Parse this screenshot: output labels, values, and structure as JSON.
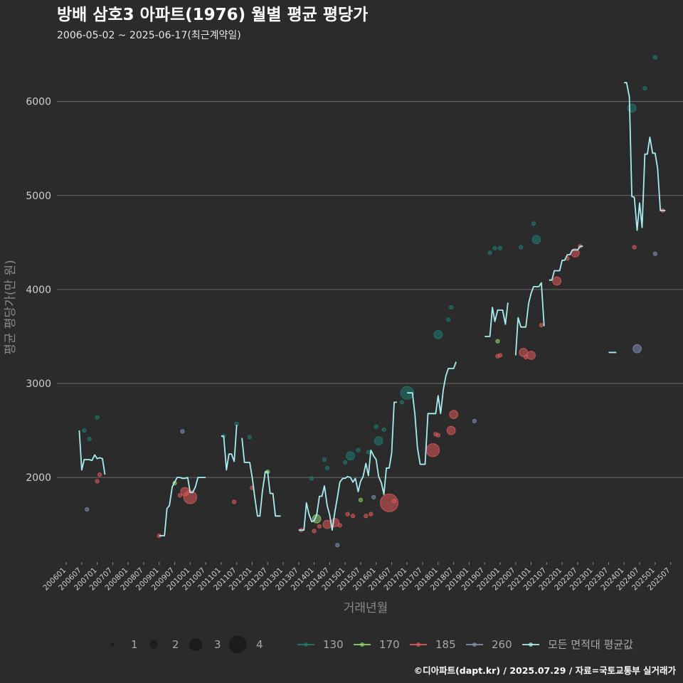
{
  "chart_data": {
    "type": "line",
    "title": "방배 삼호3 아파트(1976) 월별 평균 평당가",
    "subtitle": "2006-05-02 ~ 2025-06-17(최근계약일)",
    "xlabel": "거래년월",
    "ylabel": "평균 평당가(만 원)",
    "caption": "©디아파트(dapt.kr) / 2025.07.29 / 자료=국토교통부 실거래가",
    "ylim": [
      1100,
      6550
    ],
    "y_ticks": [
      2000,
      3000,
      4000,
      5000,
      6000
    ],
    "x_tick_labels": [
      "200601",
      "200607",
      "200701",
      "200707",
      "200801",
      "200807",
      "200901",
      "200907",
      "201001",
      "201007",
      "201101",
      "201107",
      "201201",
      "201207",
      "201301",
      "201307",
      "201401",
      "201407",
      "201501",
      "201507",
      "201601",
      "201607",
      "201701",
      "201707",
      "201801",
      "201807",
      "201901",
      "201907",
      "202001",
      "202007",
      "202101",
      "202107",
      "202201",
      "202207",
      "202301",
      "202307",
      "202401",
      "202407",
      "202501",
      "202507"
    ],
    "size_legend": [
      {
        "label": "1",
        "size": 1
      },
      {
        "label": "2",
        "size": 2
      },
      {
        "label": "3",
        "size": 3
      },
      {
        "label": "4",
        "size": 4
      }
    ],
    "color_legend": [
      {
        "label": "130",
        "color": "#1f7a72"
      },
      {
        "label": "170",
        "color": "#8fd46a"
      },
      {
        "label": "185",
        "color": "#e05a5a"
      },
      {
        "label": "260",
        "color": "#7f8fb5"
      },
      {
        "label": "모든 면적대 평균값",
        "color": "#a8eef0"
      }
    ],
    "average_line": [
      [
        [
          2006.42,
          2500
        ],
        [
          2006.5,
          2080
        ],
        [
          2006.58,
          2190
        ],
        [
          2006.67,
          2190
        ],
        [
          2006.75,
          2190
        ],
        [
          2006.83,
          2180
        ],
        [
          2006.92,
          2240
        ],
        [
          2007.0,
          2200
        ],
        [
          2007.08,
          2210
        ],
        [
          2007.17,
          2200
        ],
        [
          2007.25,
          2030
        ]
      ],
      [
        [
          2009.0,
          1380
        ],
        [
          2009.08,
          1380
        ],
        [
          2009.17,
          1380
        ],
        [
          2009.25,
          1670
        ],
        [
          2009.33,
          1700
        ],
        [
          2009.42,
          1900
        ],
        [
          2009.5,
          1950
        ],
        [
          2009.58,
          2000
        ],
        [
          2009.67,
          2000
        ],
        [
          2009.75,
          1990
        ],
        [
          2009.83,
          1990
        ],
        [
          2009.92,
          2000
        ],
        [
          2010.0,
          1840
        ],
        [
          2010.08,
          1840
        ],
        [
          2010.17,
          1900
        ],
        [
          2010.25,
          2000
        ],
        [
          2010.33,
          2000
        ],
        [
          2010.42,
          2000
        ],
        [
          2010.5,
          2000
        ]
      ],
      [
        [
          2011.0,
          2440
        ],
        [
          2011.08,
          2440
        ],
        [
          2011.17,
          2080
        ],
        [
          2011.25,
          2250
        ],
        [
          2011.33,
          2250
        ],
        [
          2011.42,
          2170
        ],
        [
          2011.5,
          2560
        ]
      ],
      [
        [
          2011.67,
          2420
        ],
        [
          2011.75,
          2160
        ],
        [
          2011.83,
          2160
        ],
        [
          2011.92,
          2160
        ],
        [
          2012.0,
          2000
        ],
        [
          2012.08,
          1800
        ],
        [
          2012.17,
          1590
        ],
        [
          2012.25,
          1590
        ],
        [
          2012.33,
          1850
        ],
        [
          2012.42,
          2060
        ],
        [
          2012.5,
          2060
        ],
        [
          2012.58,
          1830
        ],
        [
          2012.67,
          1830
        ],
        [
          2012.75,
          1590
        ],
        [
          2012.83,
          1590
        ],
        [
          2012.92,
          1590
        ]
      ],
      [
        [
          2013.5,
          1440
        ],
        [
          2013.58,
          1440
        ],
        [
          2013.67,
          1440
        ],
        [
          2013.75,
          1730
        ],
        [
          2013.83,
          1610
        ],
        [
          2013.92,
          1530
        ],
        [
          2014.0,
          1540
        ],
        [
          2014.08,
          1600
        ],
        [
          2014.17,
          1800
        ],
        [
          2014.25,
          1800
        ],
        [
          2014.33,
          1910
        ],
        [
          2014.42,
          1700
        ],
        [
          2014.5,
          1600
        ],
        [
          2014.58,
          1440
        ],
        [
          2014.67,
          1640
        ],
        [
          2014.75,
          1790
        ],
        [
          2014.83,
          1950
        ],
        [
          2014.92,
          1990
        ],
        [
          2015.0,
          1990
        ],
        [
          2015.08,
          2010
        ],
        [
          2015.17,
          2000
        ],
        [
          2015.25,
          1950
        ],
        [
          2015.33,
          1990
        ],
        [
          2015.42,
          1850
        ],
        [
          2015.5,
          1960
        ],
        [
          2015.58,
          2010
        ],
        [
          2015.67,
          2150
        ],
        [
          2015.75,
          2020
        ],
        [
          2015.83,
          2290
        ],
        [
          2015.92,
          2230
        ],
        [
          2016.0,
          2190
        ],
        [
          2016.08,
          2010
        ],
        [
          2016.17,
          1940
        ],
        [
          2016.25,
          1820
        ],
        [
          2016.33,
          2100
        ],
        [
          2016.42,
          2100
        ],
        [
          2016.5,
          2260
        ],
        [
          2016.58,
          2800
        ],
        [
          2016.67,
          2800
        ]
      ],
      [
        [
          2017.0,
          2900
        ],
        [
          2017.08,
          2900
        ],
        [
          2017.17,
          2900
        ],
        [
          2017.25,
          2670
        ],
        [
          2017.33,
          2320
        ],
        [
          2017.42,
          2140
        ],
        [
          2017.5,
          2140
        ],
        [
          2017.58,
          2140
        ],
        [
          2017.67,
          2680
        ],
        [
          2017.75,
          2680
        ],
        [
          2017.83,
          2680
        ],
        [
          2017.92,
          2680
        ],
        [
          2018.0,
          2870
        ],
        [
          2018.08,
          2680
        ],
        [
          2018.17,
          2940
        ],
        [
          2018.25,
          3080
        ],
        [
          2018.33,
          3160
        ],
        [
          2018.42,
          3160
        ],
        [
          2018.5,
          3160
        ],
        [
          2018.58,
          3230
        ]
      ],
      [
        [
          2019.5,
          3500
        ],
        [
          2019.58,
          3500
        ],
        [
          2019.67,
          3500
        ],
        [
          2019.75,
          3810
        ],
        [
          2019.83,
          3660
        ],
        [
          2019.92,
          3780
        ],
        [
          2020.0,
          3780
        ],
        [
          2020.08,
          3780
        ],
        [
          2020.17,
          3630
        ],
        [
          2020.25,
          3860
        ]
      ],
      [
        [
          2020.5,
          3300
        ],
        [
          2020.58,
          3700
        ],
        [
          2020.67,
          3600
        ],
        [
          2020.75,
          3600
        ],
        [
          2020.83,
          3600
        ],
        [
          2020.92,
          3850
        ],
        [
          2021.0,
          3960
        ],
        [
          2021.08,
          4030
        ],
        [
          2021.17,
          4030
        ],
        [
          2021.25,
          4030
        ],
        [
          2021.33,
          4070
        ],
        [
          2021.42,
          3610
        ]
      ],
      [
        [
          2021.58,
          4100
        ],
        [
          2021.67,
          4100
        ],
        [
          2021.75,
          4200
        ],
        [
          2021.83,
          4200
        ],
        [
          2021.92,
          4200
        ],
        [
          2022.0,
          4310
        ],
        [
          2022.08,
          4310
        ],
        [
          2022.17,
          4370
        ],
        [
          2022.25,
          4370
        ],
        [
          2022.33,
          4420
        ],
        [
          2022.42,
          4420
        ],
        [
          2022.5,
          4420
        ],
        [
          2022.58,
          4460
        ],
        [
          2022.67,
          4460
        ]
      ],
      [
        [
          2023.5,
          3330
        ],
        [
          2023.58,
          3330
        ],
        [
          2023.67,
          3330
        ],
        [
          2023.75,
          3330
        ]
      ],
      [
        [
          2024.0,
          6200
        ],
        [
          2024.08,
          6200
        ],
        [
          2024.17,
          6050
        ],
        [
          2024.25,
          4990
        ],
        [
          2024.33,
          4980
        ],
        [
          2024.42,
          4630
        ],
        [
          2024.5,
          4920
        ],
        [
          2024.58,
          4660
        ],
        [
          2024.67,
          5440
        ],
        [
          2024.75,
          5440
        ],
        [
          2024.83,
          5620
        ],
        [
          2024.92,
          5450
        ],
        [
          2025.0,
          5450
        ],
        [
          2025.08,
          5290
        ],
        [
          2025.17,
          4840
        ],
        [
          2025.25,
          4840
        ],
        [
          2025.33,
          4840
        ]
      ]
    ],
    "points": [
      {
        "x": 2006.58,
        "y": 2500,
        "area": "130",
        "n": 1
      },
      {
        "x": 2006.67,
        "y": 1660,
        "area": "260",
        "n": 1
      },
      {
        "x": 2006.75,
        "y": 2410,
        "area": "130",
        "n": 1
      },
      {
        "x": 2007.0,
        "y": 2640,
        "area": "130",
        "n": 1
      },
      {
        "x": 2007.0,
        "y": 1960,
        "area": "185",
        "n": 1
      },
      {
        "x": 2007.08,
        "y": 2030,
        "area": "185",
        "n": 1
      },
      {
        "x": 2009.0,
        "y": 1380,
        "area": "185",
        "n": 1
      },
      {
        "x": 2009.5,
        "y": 1940,
        "area": "170",
        "n": 1
      },
      {
        "x": 2009.67,
        "y": 1810,
        "area": "185",
        "n": 1
      },
      {
        "x": 2009.75,
        "y": 2490,
        "area": "260",
        "n": 1
      },
      {
        "x": 2009.83,
        "y": 1850,
        "area": "185",
        "n": 2
      },
      {
        "x": 2010.0,
        "y": 1790,
        "area": "185",
        "n": 3
      },
      {
        "x": 2011.08,
        "y": 2440,
        "area": "130",
        "n": 1
      },
      {
        "x": 2011.42,
        "y": 1740,
        "area": "185",
        "n": 1
      },
      {
        "x": 2011.5,
        "y": 2570,
        "area": "130",
        "n": 1
      },
      {
        "x": 2011.92,
        "y": 2430,
        "area": "130",
        "n": 1
      },
      {
        "x": 2012.0,
        "y": 1890,
        "area": "185",
        "n": 1
      },
      {
        "x": 2012.5,
        "y": 2060,
        "area": "170",
        "n": 1
      },
      {
        "x": 2013.58,
        "y": 1440,
        "area": "185",
        "n": 1
      },
      {
        "x": 2013.92,
        "y": 1990,
        "area": "130",
        "n": 1
      },
      {
        "x": 2014.0,
        "y": 1430,
        "area": "185",
        "n": 1
      },
      {
        "x": 2014.08,
        "y": 1560,
        "area": "170",
        "n": 2
      },
      {
        "x": 2014.17,
        "y": 1480,
        "area": "185",
        "n": 1
      },
      {
        "x": 2014.33,
        "y": 2190,
        "area": "130",
        "n": 1
      },
      {
        "x": 2014.42,
        "y": 2100,
        "area": "130",
        "n": 1
      },
      {
        "x": 2014.42,
        "y": 1500,
        "area": "185",
        "n": 2
      },
      {
        "x": 2014.67,
        "y": 1520,
        "area": "185",
        "n": 2
      },
      {
        "x": 2014.75,
        "y": 1280,
        "area": "260",
        "n": 1
      },
      {
        "x": 2014.83,
        "y": 1490,
        "area": "185",
        "n": 1
      },
      {
        "x": 2015.0,
        "y": 2160,
        "area": "130",
        "n": 1
      },
      {
        "x": 2015.08,
        "y": 1610,
        "area": "185",
        "n": 1
      },
      {
        "x": 2015.17,
        "y": 2230,
        "area": "130",
        "n": 2
      },
      {
        "x": 2015.25,
        "y": 1590,
        "area": "185",
        "n": 1
      },
      {
        "x": 2015.42,
        "y": 2290,
        "area": "130",
        "n": 1
      },
      {
        "x": 2015.5,
        "y": 1760,
        "area": "170",
        "n": 1
      },
      {
        "x": 2015.67,
        "y": 1590,
        "area": "185",
        "n": 1
      },
      {
        "x": 2015.75,
        "y": 2270,
        "area": "130",
        "n": 1
      },
      {
        "x": 2015.83,
        "y": 1610,
        "area": "185",
        "n": 1
      },
      {
        "x": 2015.92,
        "y": 1790,
        "area": "260",
        "n": 1
      },
      {
        "x": 2016.0,
        "y": 2540,
        "area": "130",
        "n": 1
      },
      {
        "x": 2016.08,
        "y": 2390,
        "area": "130",
        "n": 2
      },
      {
        "x": 2016.25,
        "y": 2510,
        "area": "130",
        "n": 1
      },
      {
        "x": 2016.42,
        "y": 1730,
        "area": "185",
        "n": 4
      },
      {
        "x": 2016.58,
        "y": 1750,
        "area": "185",
        "n": 1
      },
      {
        "x": 2016.83,
        "y": 2800,
        "area": "130",
        "n": 1
      },
      {
        "x": 2017.0,
        "y": 2900,
        "area": "130",
        "n": 3
      },
      {
        "x": 2017.83,
        "y": 2290,
        "area": "185",
        "n": 3
      },
      {
        "x": 2017.92,
        "y": 2460,
        "area": "185",
        "n": 1
      },
      {
        "x": 2018.0,
        "y": 3520,
        "area": "130",
        "n": 2
      },
      {
        "x": 2018.0,
        "y": 2450,
        "area": "185",
        "n": 1
      },
      {
        "x": 2018.42,
        "y": 2500,
        "area": "185",
        "n": 2
      },
      {
        "x": 2018.5,
        "y": 2670,
        "area": "185",
        "n": 2
      },
      {
        "x": 2018.33,
        "y": 3680,
        "area": "130",
        "n": 1
      },
      {
        "x": 2018.42,
        "y": 3810,
        "area": "130",
        "n": 1
      },
      {
        "x": 2019.17,
        "y": 2600,
        "area": "260",
        "n": 1
      },
      {
        "x": 2019.67,
        "y": 4390,
        "area": "130",
        "n": 1
      },
      {
        "x": 2019.83,
        "y": 4440,
        "area": "130",
        "n": 1
      },
      {
        "x": 2019.92,
        "y": 3450,
        "area": "170",
        "n": 1
      },
      {
        "x": 2019.92,
        "y": 3290,
        "area": "185",
        "n": 1
      },
      {
        "x": 2020.0,
        "y": 4440,
        "area": "130",
        "n": 1
      },
      {
        "x": 2020.0,
        "y": 3300,
        "area": "185",
        "n": 1
      },
      {
        "x": 2020.67,
        "y": 4450,
        "area": "130",
        "n": 1
      },
      {
        "x": 2020.75,
        "y": 3330,
        "area": "185",
        "n": 2
      },
      {
        "x": 2020.83,
        "y": 3280,
        "area": "185",
        "n": 1
      },
      {
        "x": 2021.0,
        "y": 3300,
        "area": "185",
        "n": 2
      },
      {
        "x": 2021.08,
        "y": 4700,
        "area": "130",
        "n": 1
      },
      {
        "x": 2021.17,
        "y": 4530,
        "area": "130",
        "n": 2
      },
      {
        "x": 2021.33,
        "y": 3620,
        "area": "185",
        "n": 1
      },
      {
        "x": 2021.83,
        "y": 4090,
        "area": "185",
        "n": 2
      },
      {
        "x": 2022.17,
        "y": 4330,
        "area": "185",
        "n": 1
      },
      {
        "x": 2022.42,
        "y": 4390,
        "area": "185",
        "n": 2
      },
      {
        "x": 2022.58,
        "y": 4460,
        "area": "185",
        "n": 1
      },
      {
        "x": 2024.25,
        "y": 5930,
        "area": "130",
        "n": 2
      },
      {
        "x": 2024.33,
        "y": 4450,
        "area": "185",
        "n": 1
      },
      {
        "x": 2024.42,
        "y": 3370,
        "area": "260",
        "n": 2
      },
      {
        "x": 2024.67,
        "y": 6140,
        "area": "130",
        "n": 1
      },
      {
        "x": 2025.0,
        "y": 6470,
        "area": "130",
        "n": 1
      },
      {
        "x": 2025.0,
        "y": 4380,
        "area": "260",
        "n": 1
      },
      {
        "x": 2025.25,
        "y": 4840,
        "area": "185",
        "n": 1
      }
    ]
  }
}
